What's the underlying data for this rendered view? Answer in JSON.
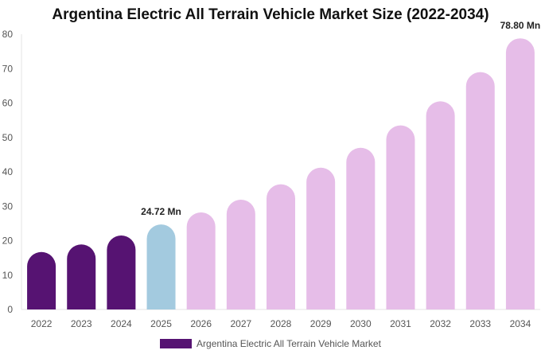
{
  "chart_data": {
    "type": "bar",
    "title": "Argentina Electric All Terrain Vehicle Market Size (2022-2034)",
    "categories": [
      "2022",
      "2023",
      "2024",
      "2025",
      "2026",
      "2027",
      "2028",
      "2029",
      "2030",
      "2031",
      "2032",
      "2033",
      "2034"
    ],
    "series": [
      {
        "name": "Argentina Electric All Terrain Vehicle Market",
        "values": [
          16.7,
          18.9,
          21.5,
          24.72,
          28.2,
          31.9,
          36.4,
          41.2,
          47.0,
          53.5,
          60.5,
          69.0,
          78.8
        ]
      }
    ],
    "bar_colors": [
      "#561372",
      "#561372",
      "#561372",
      "#a3cadf",
      "#e6bde8",
      "#e6bde8",
      "#e6bde8",
      "#e6bde8",
      "#e6bde8",
      "#e6bde8",
      "#e6bde8",
      "#e6bde8",
      "#e6bde8"
    ],
    "data_labels": [
      {
        "category": "2025",
        "text": "24.72 Mn"
      },
      {
        "category": "2034",
        "text": "78.80 Mn"
      }
    ],
    "ylim": [
      0,
      80
    ],
    "yticks": [
      0,
      10,
      20,
      30,
      40,
      50,
      60,
      70,
      80
    ],
    "grid": false,
    "legend": {
      "position": "bottom",
      "color": "#561372"
    }
  }
}
